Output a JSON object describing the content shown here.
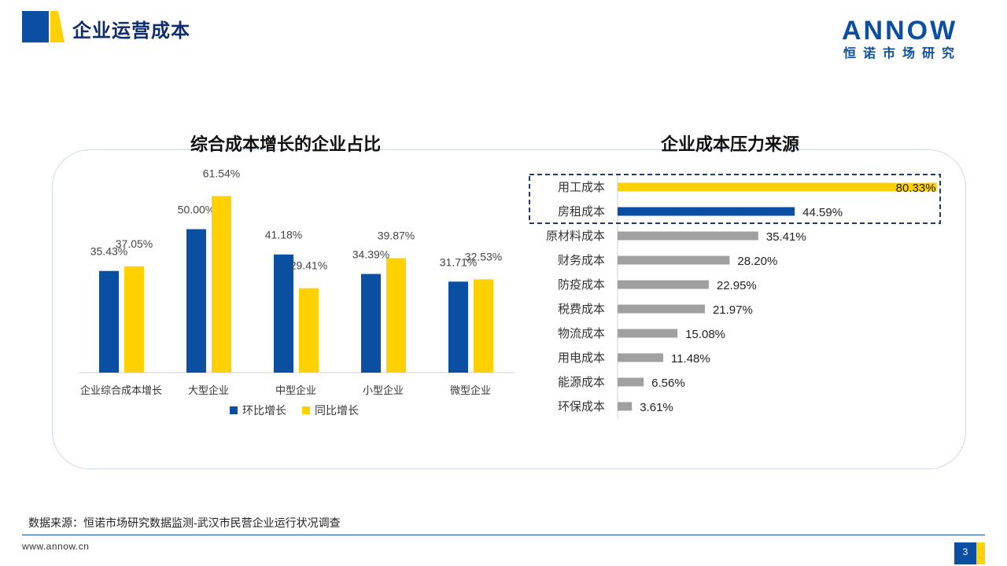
{
  "header": {
    "title": "企业运营成本",
    "logo_text": "ANNOW",
    "logo_subtext": "恒诺市场研究"
  },
  "footer": {
    "source": "数据来源：恒诺市场研究数据监测-武汉市民营企业运行状况调查",
    "website": "www.annow.cn",
    "page_number": "3"
  },
  "colors": {
    "primary_blue": "#0b4fa3",
    "yellow": "#ffd100",
    "gray": "#a0a0a0",
    "dark_navy": "#0d2d6c"
  },
  "chart_data": [
    {
      "type": "bar",
      "title": "综合成本增长的企业占比",
      "categories": [
        "企业综合成本增长",
        "大型企业",
        "中型企业",
        "小型企业",
        "微型企业"
      ],
      "series": [
        {
          "name": "环比增长",
          "color": "#0b4fa3",
          "values": [
            35.43,
            50.0,
            41.18,
            34.39,
            31.71
          ],
          "labels": [
            "35.43%",
            "50.00%",
            "41.18%",
            "34.39%",
            "31.71%"
          ]
        },
        {
          "name": "同比增长",
          "color": "#ffd100",
          "values": [
            37.05,
            61.54,
            29.41,
            39.87,
            32.53
          ],
          "labels": [
            "37.05%",
            "61.54%",
            "29.41%",
            "39.87%",
            "32.53%"
          ]
        }
      ],
      "legend": "bottom",
      "grid": false
    },
    {
      "type": "bar",
      "orientation": "horizontal",
      "title": "企业成本压力来源",
      "categories": [
        "用工成本",
        "房租成本",
        "原材料成本",
        "财务成本",
        "防疫成本",
        "税费成本",
        "物流成本",
        "用电成本",
        "能源成本",
        "环保成本"
      ],
      "values": [
        80.33,
        44.59,
        35.41,
        28.2,
        22.95,
        21.97,
        15.08,
        11.48,
        6.56,
        3.61
      ],
      "labels": [
        "80.33%",
        "44.59%",
        "35.41%",
        "28.20%",
        "22.95%",
        "21.97%",
        "15.08%",
        "11.48%",
        "6.56%",
        "3.61%"
      ],
      "bar_colors": [
        "#ffd100",
        "#0b4fa3",
        "#a0a0a0",
        "#a0a0a0",
        "#a0a0a0",
        "#a0a0a0",
        "#a0a0a0",
        "#a0a0a0",
        "#a0a0a0",
        "#a0a0a0"
      ],
      "highlighted": [
        "用工成本",
        "房租成本"
      ],
      "grid": false
    }
  ]
}
